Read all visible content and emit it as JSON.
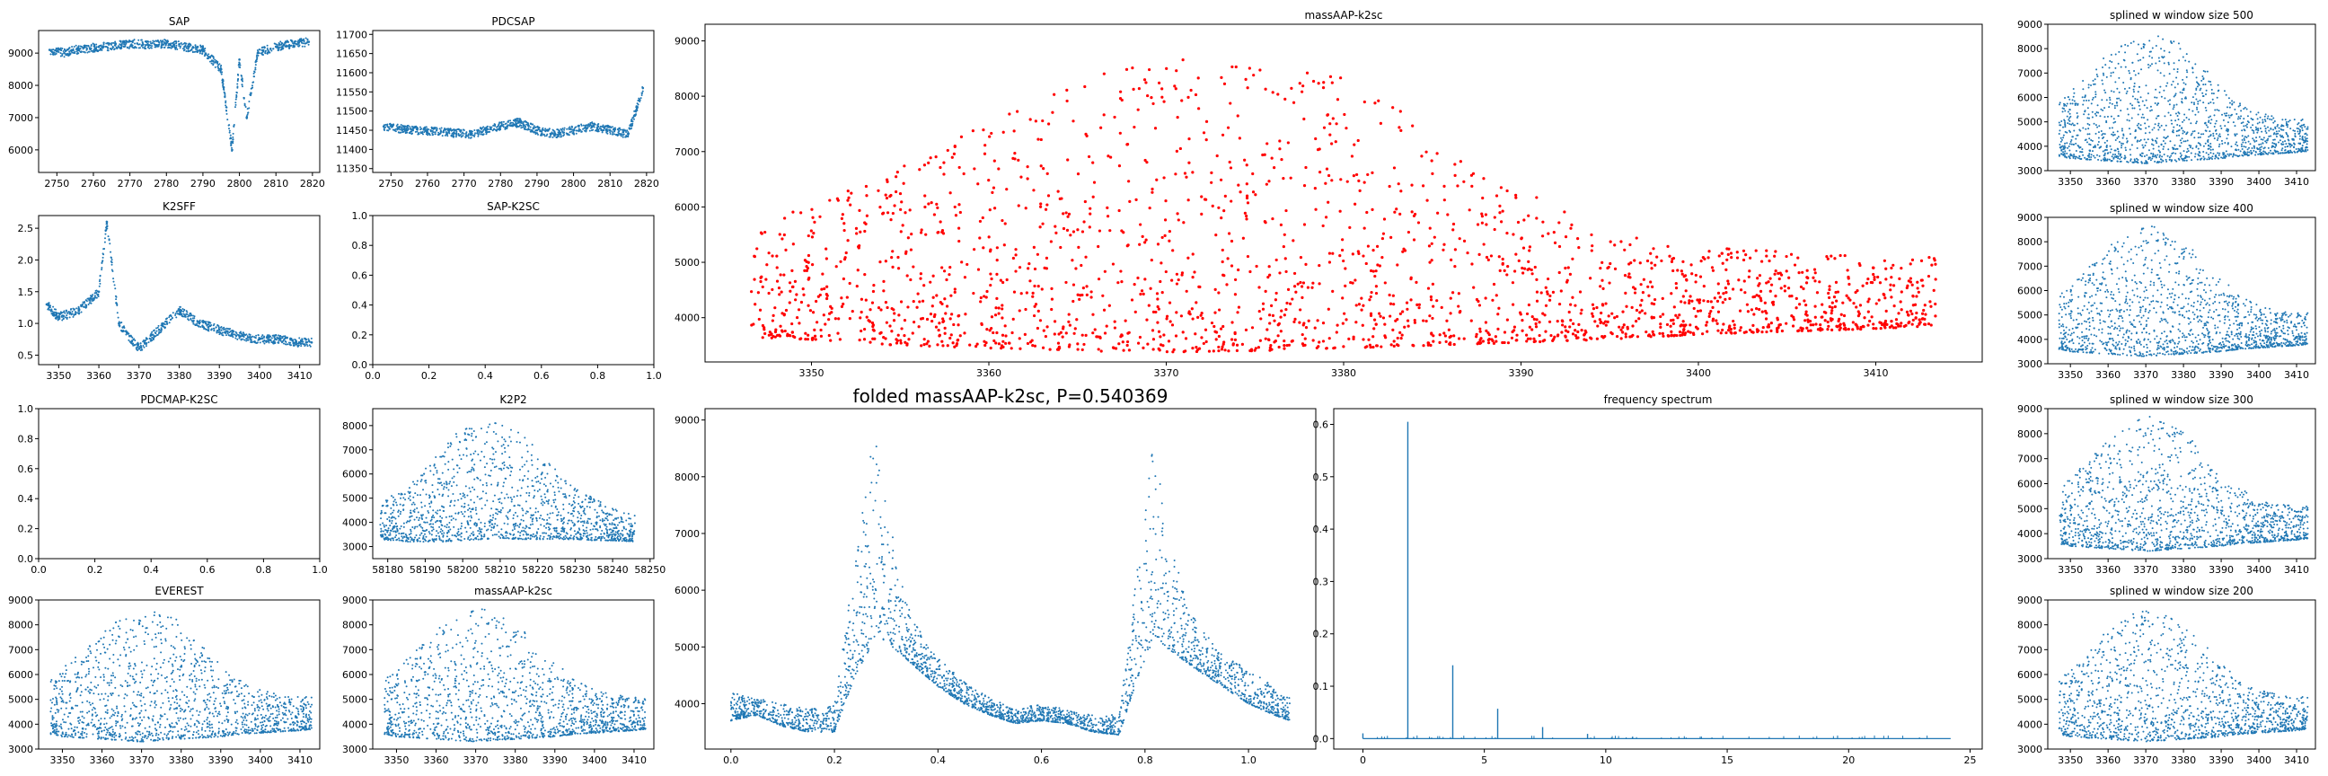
{
  "chart_data": [
    {
      "id": "sap",
      "type": "scatter",
      "title": "SAP",
      "xlim": [
        2745,
        2822
      ],
      "ylim": [
        5300,
        9700
      ],
      "xticks": [
        2750,
        2760,
        2770,
        2780,
        2790,
        2800,
        2810,
        2820
      ],
      "yticks": [
        6000,
        7000,
        8000,
        9000
      ],
      "x": [
        2748,
        2750,
        2752,
        2754,
        2756,
        2772,
        2775,
        2780,
        2785,
        2790,
        2795,
        2798,
        2800,
        2802,
        2805,
        2810,
        2815,
        2819
      ],
      "y": [
        9100,
        9050,
        9000,
        9080,
        9120,
        9300,
        9250,
        9300,
        9200,
        9100,
        8500,
        6000,
        8800,
        7000,
        9000,
        9200,
        9300,
        9350
      ],
      "color": "#1f77b4"
    },
    {
      "id": "pdcsap",
      "type": "scatter",
      "title": "PDCSAP",
      "xlim": [
        2745,
        2822
      ],
      "ylim": [
        11340,
        11710
      ],
      "xticks": [
        2750,
        2760,
        2770,
        2780,
        2790,
        2800,
        2810,
        2820
      ],
      "yticks": [
        11350,
        11400,
        11450,
        11500,
        11550,
        11600,
        11650,
        11700
      ],
      "x": [
        2748,
        2752,
        2756,
        2772,
        2776,
        2780,
        2785,
        2790,
        2795,
        2800,
        2805,
        2810,
        2815,
        2819
      ],
      "y": [
        11460,
        11455,
        11450,
        11440,
        11450,
        11460,
        11470,
        11450,
        11440,
        11450,
        11460,
        11450,
        11440,
        11560
      ],
      "color": "#1f77b4"
    },
    {
      "id": "k2sff",
      "type": "scatter",
      "title": "K2SFF",
      "xlim": [
        3345,
        3415
      ],
      "ylim": [
        0.35,
        2.7
      ],
      "xticks": [
        3350,
        3360,
        3370,
        3380,
        3390,
        3400,
        3410
      ],
      "yticks": [
        0.5,
        1.0,
        1.5,
        2.0,
        2.5
      ],
      "x": [
        3347,
        3350,
        3355,
        3360,
        3362,
        3365,
        3370,
        3375,
        3380,
        3385,
        3390,
        3395,
        3400,
        3405,
        3410,
        3413
      ],
      "y": [
        1.3,
        1.1,
        1.2,
        1.5,
        2.6,
        1.0,
        0.6,
        0.9,
        1.2,
        1.0,
        0.9,
        0.8,
        0.75,
        0.75,
        0.7,
        0.7
      ],
      "color": "#1f77b4"
    },
    {
      "id": "sap-k2sc",
      "type": "scatter",
      "title": "SAP-K2SC",
      "xlim": [
        0,
        1
      ],
      "ylim": [
        0,
        1
      ],
      "xticks": [
        0.0,
        0.2,
        0.4,
        0.6,
        0.8,
        1.0
      ],
      "yticks": [
        0.0,
        0.2,
        0.4,
        0.6,
        0.8,
        1.0
      ],
      "x": [],
      "y": []
    },
    {
      "id": "pdcmap-k2sc",
      "type": "scatter",
      "title": "PDCMAP-K2SC",
      "xlim": [
        0,
        1
      ],
      "ylim": [
        0,
        1
      ],
      "xticks": [
        0.0,
        0.2,
        0.4,
        0.6,
        0.8,
        1.0
      ],
      "yticks": [
        0.0,
        0.2,
        0.4,
        0.6,
        0.8,
        1.0
      ],
      "x": [],
      "y": []
    },
    {
      "id": "k2p2",
      "type": "scatter",
      "title": "K2P2",
      "xlim": [
        58176,
        58251
      ],
      "ylim": [
        2500,
        8700
      ],
      "xticks": [
        58180,
        58190,
        58200,
        58210,
        58220,
        58230,
        58240,
        58250
      ],
      "yticks": [
        3000,
        4000,
        5000,
        6000,
        7000,
        8000
      ],
      "x": [
        58178,
        58185,
        58190,
        58195,
        58200,
        58205,
        58210,
        58215,
        58220,
        58225,
        58230,
        58235,
        58240,
        58246
      ],
      "y_min": [
        3300,
        3200,
        3200,
        3200,
        3250,
        3300,
        3350,
        3300,
        3300,
        3300,
        3300,
        3250,
        3250,
        3200
      ],
      "y_max": [
        4800,
        5500,
        6200,
        7200,
        7900,
        8200,
        8300,
        7800,
        7000,
        6200,
        5500,
        5000,
        4600,
        4300
      ],
      "color": "#1f77b4"
    },
    {
      "id": "everest",
      "type": "scatter",
      "title": "EVEREST",
      "xlim": [
        3344,
        3415
      ],
      "ylim": [
        3000,
        9000
      ],
      "xticks": [
        3350,
        3360,
        3370,
        3380,
        3390,
        3400,
        3410
      ],
      "yticks": [
        3000,
        4000,
        5000,
        6000,
        7000,
        8000,
        9000
      ],
      "x": [
        3347,
        3350,
        3355,
        3360,
        3365,
        3370,
        3375,
        3380,
        3385,
        3390,
        3395,
        3400,
        3405,
        3410,
        3413
      ],
      "y_min": [
        3600,
        3500,
        3450,
        3400,
        3350,
        3300,
        3350,
        3400,
        3450,
        3500,
        3600,
        3650,
        3700,
        3750,
        3800
      ],
      "y_max": [
        5800,
        6300,
        7000,
        7800,
        8300,
        8700,
        8600,
        8100,
        7300,
        6500,
        5800,
        5400,
        5200,
        5100,
        5100
      ],
      "color": "#1f77b4"
    },
    {
      "id": "massaap-small",
      "type": "scatter",
      "title": "massAAP-k2sc",
      "xlim": [
        3344,
        3415
      ],
      "ylim": [
        3000,
        9000
      ],
      "xticks": [
        3350,
        3360,
        3370,
        3380,
        3390,
        3400,
        3410
      ],
      "yticks": [
        3000,
        4000,
        5000,
        6000,
        7000,
        8000,
        9000
      ],
      "x": [
        3347,
        3350,
        3355,
        3360,
        3365,
        3370,
        3375,
        3380,
        3385,
        3390,
        3395,
        3400,
        3405,
        3410,
        3413
      ],
      "y_min": [
        3600,
        3500,
        3450,
        3400,
        3350,
        3300,
        3350,
        3400,
        3450,
        3500,
        3600,
        3650,
        3700,
        3750,
        3800
      ],
      "y_max": [
        5800,
        6300,
        7000,
        7800,
        8300,
        8700,
        8600,
        8100,
        7300,
        6500,
        5800,
        5400,
        5200,
        5100,
        5100
      ],
      "color": "#1f77b4"
    },
    {
      "id": "massaap-big",
      "type": "scatter",
      "title": "massAAP-k2sc",
      "xlim": [
        3344,
        3416
      ],
      "ylim": [
        3200,
        9300
      ],
      "xticks": [
        3350,
        3360,
        3370,
        3380,
        3390,
        3400,
        3410
      ],
      "yticks": [
        4000,
        5000,
        6000,
        7000,
        8000,
        9000
      ],
      "x": [
        3346.6,
        3350,
        3355,
        3360,
        3365,
        3370,
        3375,
        3380,
        3385,
        3390,
        3395,
        3400,
        3405,
        3410,
        3413.4
      ],
      "y_min": [
        3650,
        3600,
        3500,
        3450,
        3400,
        3380,
        3400,
        3450,
        3500,
        3550,
        3600,
        3700,
        3750,
        3800,
        3850
      ],
      "y_max": [
        5700,
        6100,
        6800,
        7600,
        8300,
        8650,
        8700,
        8400,
        7500,
        6400,
        5500,
        5300,
        5200,
        5100,
        5100
      ],
      "color": "#ff0000"
    },
    {
      "id": "splined-500",
      "type": "scatter",
      "title": "splined w window size 500",
      "xlim": [
        3344,
        3415
      ],
      "ylim": [
        3000,
        9000
      ],
      "xticks": [
        3350,
        3360,
        3370,
        3380,
        3390,
        3400,
        3410
      ],
      "yticks": [
        3000,
        4000,
        5000,
        6000,
        7000,
        8000,
        9000
      ],
      "x": [
        3347,
        3350,
        3355,
        3360,
        3365,
        3370,
        3375,
        3380,
        3385,
        3390,
        3395,
        3400,
        3405,
        3410,
        3413
      ],
      "y_min": [
        3600,
        3500,
        3450,
        3400,
        3350,
        3300,
        3350,
        3400,
        3450,
        3500,
        3600,
        3650,
        3700,
        3750,
        3800
      ],
      "y_max": [
        5800,
        6300,
        7000,
        7800,
        8300,
        8700,
        8600,
        8100,
        7300,
        6500,
        5800,
        5400,
        5200,
        5100,
        5100
      ],
      "color": "#1f77b4"
    },
    {
      "id": "splined-400",
      "type": "scatter",
      "title": "splined w window size 400",
      "xlim": [
        3344,
        3415
      ],
      "ylim": [
        3000,
        9000
      ],
      "xticks": [
        3350,
        3360,
        3370,
        3380,
        3390,
        3400,
        3410
      ],
      "yticks": [
        3000,
        4000,
        5000,
        6000,
        7000,
        8000,
        9000
      ],
      "x": [
        3347,
        3350,
        3355,
        3360,
        3365,
        3370,
        3375,
        3380,
        3385,
        3390,
        3395,
        3400,
        3405,
        3410,
        3413
      ],
      "y_min": [
        3600,
        3500,
        3450,
        3400,
        3350,
        3300,
        3350,
        3400,
        3450,
        3500,
        3600,
        3650,
        3700,
        3750,
        3800
      ],
      "y_max": [
        5800,
        6300,
        7000,
        7800,
        8300,
        8700,
        8600,
        8100,
        7300,
        6500,
        5800,
        5400,
        5200,
        5100,
        5100
      ],
      "color": "#1f77b4"
    },
    {
      "id": "splined-300",
      "type": "scatter",
      "title": "splined w window size 300",
      "xlim": [
        3344,
        3415
      ],
      "ylim": [
        3000,
        9000
      ],
      "xticks": [
        3350,
        3360,
        3370,
        3380,
        3390,
        3400,
        3410
      ],
      "yticks": [
        3000,
        4000,
        5000,
        6000,
        7000,
        8000,
        9000
      ],
      "x": [
        3347,
        3350,
        3355,
        3360,
        3365,
        3370,
        3375,
        3380,
        3385,
        3390,
        3395,
        3400,
        3405,
        3410,
        3413
      ],
      "y_min": [
        3600,
        3500,
        3450,
        3400,
        3350,
        3300,
        3350,
        3400,
        3450,
        3500,
        3600,
        3650,
        3700,
        3750,
        3800
      ],
      "y_max": [
        5800,
        6300,
        7000,
        7800,
        8300,
        8700,
        8600,
        8100,
        7300,
        6500,
        5800,
        5400,
        5200,
        5100,
        5100
      ],
      "color": "#1f77b4"
    },
    {
      "id": "splined-200",
      "type": "scatter",
      "title": "splined w window size 200",
      "xlim": [
        3344,
        3415
      ],
      "ylim": [
        3000,
        9000
      ],
      "xticks": [
        3350,
        3360,
        3370,
        3380,
        3390,
        3400,
        3410
      ],
      "yticks": [
        3000,
        4000,
        5000,
        6000,
        7000,
        8000,
        9000
      ],
      "x": [
        3347,
        3350,
        3355,
        3360,
        3365,
        3370,
        3375,
        3380,
        3385,
        3390,
        3395,
        3400,
        3405,
        3410,
        3413
      ],
      "y_min": [
        3600,
        3500,
        3450,
        3400,
        3350,
        3300,
        3350,
        3400,
        3450,
        3500,
        3600,
        3650,
        3700,
        3750,
        3800
      ],
      "y_max": [
        5800,
        6300,
        7000,
        7800,
        8300,
        8700,
        8600,
        8100,
        7300,
        6500,
        5800,
        5400,
        5200,
        5100,
        5100
      ],
      "color": "#1f77b4"
    },
    {
      "id": "folded",
      "type": "scatter",
      "title": "folded massAAP-k2sc, P=0.540369",
      "xlim": [
        -0.05,
        1.13
      ],
      "ylim": [
        3200,
        9200
      ],
      "xticks": [
        0.0,
        0.2,
        0.4,
        0.6,
        0.8,
        1.0
      ],
      "yticks": [
        4000,
        5000,
        6000,
        7000,
        8000,
        9000
      ],
      "x": [
        0.0,
        0.05,
        0.1,
        0.15,
        0.2,
        0.24,
        0.27,
        0.28,
        0.3,
        0.35,
        0.4,
        0.45,
        0.5,
        0.55,
        0.6,
        0.65,
        0.7,
        0.75,
        0.78,
        0.81,
        0.82,
        0.84,
        0.9,
        0.95,
        1.0,
        1.05,
        1.08
      ],
      "y_min": [
        3700,
        3800,
        3600,
        3500,
        3500,
        4500,
        5000,
        5200,
        5100,
        4700,
        4300,
        4000,
        3800,
        3650,
        3700,
        3650,
        3500,
        3450,
        4300,
        5000,
        5200,
        5000,
        4600,
        4300,
        4000,
        3800,
        3700
      ],
      "y_max": [
        4200,
        4100,
        4000,
        3900,
        4000,
        6500,
        8400,
        8800,
        7500,
        5500,
        4800,
        4400,
        4100,
        3900,
        4000,
        3900,
        3800,
        3800,
        6000,
        8300,
        8700,
        7000,
        5400,
        4900,
        4600,
        4300,
        4100
      ],
      "color": "#1f77b4"
    },
    {
      "id": "spectrum",
      "type": "line",
      "title": "frequency spectrum",
      "xlim": [
        -1.2,
        25.5
      ],
      "ylim": [
        -0.02,
        0.63
      ],
      "xticks": [
        0,
        5,
        10,
        15,
        20,
        25
      ],
      "yticks": [
        0.0,
        0.1,
        0.2,
        0.3,
        0.4,
        0.5,
        0.6
      ],
      "x": [
        0,
        1.85,
        3.7,
        5.55,
        7.4,
        9.25,
        11.1,
        24.2
      ],
      "y": [
        0.01,
        0.605,
        0.14,
        0.057,
        0.022,
        0.009,
        0.003,
        0.0
      ],
      "color": "#1f77b4"
    }
  ]
}
